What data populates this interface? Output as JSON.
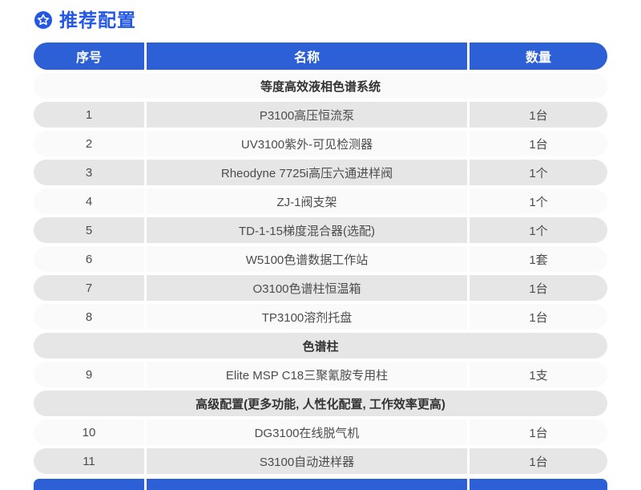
{
  "page_title": "推荐配置",
  "table": {
    "columns": [
      "序号",
      "名称",
      "数量"
    ],
    "rows": [
      {
        "type": "section",
        "label": "等度高效液相色谱系统"
      },
      {
        "type": "item",
        "no": "1",
        "name": "P3100高压恒流泵",
        "qty": "1台"
      },
      {
        "type": "item",
        "no": "2",
        "name": "UV3100紫外-可见检测器",
        "qty": "1台"
      },
      {
        "type": "item",
        "no": "3",
        "name": "Rheodyne 7725i高压六通进样阀",
        "qty": "1个"
      },
      {
        "type": "item",
        "no": "4",
        "name": "ZJ-1阀支架",
        "qty": "1个"
      },
      {
        "type": "item",
        "no": "5",
        "name": "TD-1-15梯度混合器(选配)",
        "qty": "1个"
      },
      {
        "type": "item",
        "no": "6",
        "name": "W5100色谱数据工作站",
        "qty": "1套"
      },
      {
        "type": "item",
        "no": "7",
        "name": "O3100色谱柱恒温箱",
        "qty": "1台"
      },
      {
        "type": "item",
        "no": "8",
        "name": "TP3100溶剂托盘",
        "qty": "1台"
      },
      {
        "type": "section",
        "label": "色谱柱"
      },
      {
        "type": "item",
        "no": "9",
        "name": "Elite MSP C18三聚氰胺专用柱",
        "qty": "1支"
      },
      {
        "type": "section",
        "label": "高级配置(更多功能, 人性化配置, 工作效率更高)"
      },
      {
        "type": "item",
        "no": "10",
        "name": "DG3100在线脱气机",
        "qty": "1台"
      },
      {
        "type": "item",
        "no": "11",
        "name": "S3100自动进样器",
        "qty": "1台"
      }
    ]
  },
  "colors": {
    "title_blue": "#2358e6",
    "header_blue": "#2d5fd7",
    "row_dark": "#e6e6e6",
    "row_light": "#fafafa",
    "body_text": "#4c4c4c",
    "section_text": "#333333"
  }
}
